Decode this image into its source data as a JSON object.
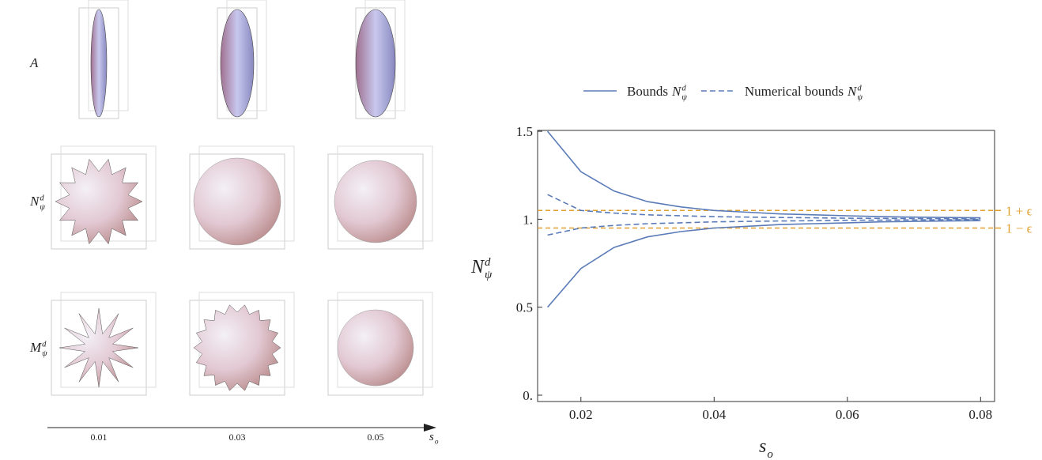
{
  "left_panel": {
    "rows": [
      {
        "base": "A"
      },
      {
        "base": "N",
        "sup": "d",
        "sub": "ψ"
      },
      {
        "base": "M",
        "sup": "d",
        "sub": "ψ"
      }
    ],
    "axis_labels": [
      "0.01",
      "0.03",
      "0.05"
    ],
    "axis_title": {
      "base": "s",
      "sub": "o"
    }
  },
  "chart_data": {
    "type": "line",
    "x": [
      0.015,
      0.02,
      0.025,
      0.03,
      0.035,
      0.04,
      0.045,
      0.05,
      0.055,
      0.06,
      0.065,
      0.07,
      0.075,
      0.08
    ],
    "series": [
      {
        "name": "Bounds",
        "symbol": {
          "base": "N",
          "sup": "d",
          "sub": "ψ"
        },
        "color": "#5b7bb8",
        "dashed": false,
        "values": [
          1.5,
          1.27,
          1.16,
          1.1,
          1.07,
          1.05,
          1.04,
          1.03,
          1.025,
          1.02,
          1.015,
          1.012,
          1.01,
          1.008
        ],
        "lower": [
          0.5,
          0.72,
          0.84,
          0.9,
          0.93,
          0.95,
          0.96,
          0.97,
          0.975,
          0.98,
          0.985,
          0.988,
          0.99,
          0.992
        ]
      },
      {
        "name": "Numerical bounds",
        "symbol": {
          "base": "N",
          "sup": "d",
          "sub": "ψ"
        },
        "color": "#5b7bb8",
        "dashed": true,
        "values": [
          1.14,
          1.05,
          1.035,
          1.025,
          1.02,
          1.015,
          1.012,
          1.01,
          1.008,
          1.006,
          1.005,
          1.004,
          1.003,
          1.002
        ],
        "lower": [
          0.91,
          0.95,
          0.965,
          0.975,
          0.98,
          0.985,
          0.988,
          0.99,
          0.992,
          0.994,
          0.995,
          0.996,
          0.997,
          0.998
        ]
      }
    ],
    "reference_lines": [
      {
        "value": 1.05,
        "label": "1 + ϵ"
      },
      {
        "value": 0.95,
        "label": "1 − ϵ"
      }
    ],
    "reference_color": "#e0a030",
    "xlim": [
      0.0135,
      0.0821
    ],
    "ylim": [
      -0.036,
      1.505
    ],
    "xticks": [
      0.02,
      0.04,
      0.06,
      0.08
    ],
    "yticks": [
      {
        "value": 0,
        "label": "0."
      },
      0.5,
      {
        "value": 1,
        "label": "1."
      },
      1.5
    ],
    "x_label": {
      "base": "s",
      "sub": "o"
    },
    "y_label": {
      "base": "N",
      "sup": "d",
      "sub": "ψ"
    }
  }
}
